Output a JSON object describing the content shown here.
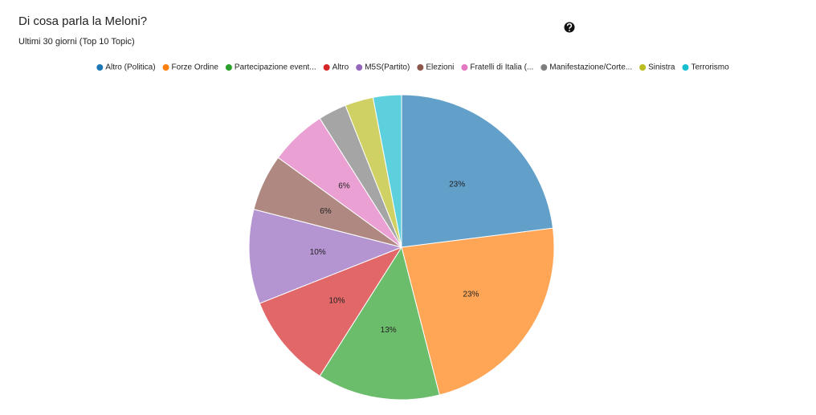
{
  "chart_data": {
    "type": "pie",
    "title": "Di cosa parla la Meloni?",
    "subtitle": "Ultimi 30 giorni (Top 10 Topic)",
    "categories": [
      "Altro (Politica)",
      "Forze Ordine",
      "Partecipazione event...",
      "Altro",
      "M5S(Partito)",
      "Elezioni",
      "Fratelli di Italia (...",
      "Manifestazione/Corte...",
      "Sinistra",
      "Terrorismo"
    ],
    "values": [
      23,
      23,
      13,
      10,
      10,
      6,
      6,
      3,
      3,
      3
    ],
    "value_labels": [
      "23%",
      "23%",
      "13%",
      "10%",
      "10%",
      "6%",
      "6%",
      null,
      null,
      null
    ],
    "colors": [
      "#1f77b4",
      "#ff7f0e",
      "#2ca02c",
      "#d62728",
      "#9467bd",
      "#8c564b",
      "#e377c2",
      "#7f7f7f",
      "#bcbd22",
      "#17becf"
    ],
    "legend": "top"
  }
}
